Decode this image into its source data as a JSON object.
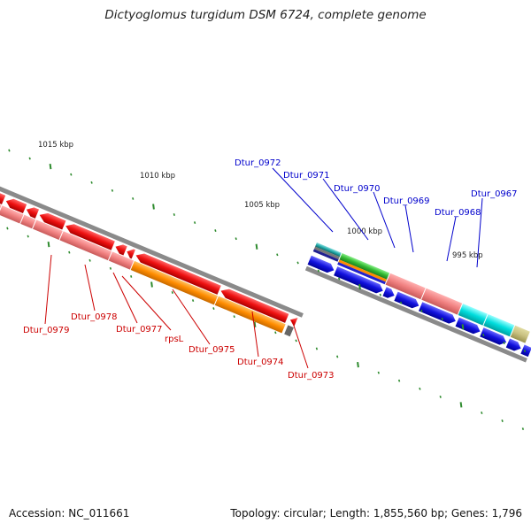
{
  "title": "Dictyoglomus turgidum DSM 6724, complete genome",
  "footer": {
    "accession": "Accession: NC_011661",
    "summary": "Topology: circular; Length: 1,855,560 bp; Genes: 1,796"
  },
  "scale": {
    "labels": [
      "1015 kbp",
      "1010 kbp",
      "1005 kbp",
      "1000 kbp",
      "995 kbp"
    ],
    "tick_color": "#2e8b2e"
  },
  "colors": {
    "backbone": "#8a8a8a",
    "red": "#ee1111",
    "salmon": "#f08080",
    "orange": "#ff8c00",
    "blue": "#1111dd",
    "green": "#33bb33",
    "cyan": "#00dddd",
    "label_red": "#cc0000",
    "label_blue": "#0000cc"
  },
  "genes_left": [
    "Dtur_0979",
    "Dtur_0978",
    "Dtur_0977",
    "rpsL",
    "Dtur_0975",
    "Dtur_0974",
    "Dtur_0973"
  ],
  "genes_right": [
    "Dtur_0972",
    "Dtur_0971",
    "Dtur_0970",
    "Dtur_0969",
    "Dtur_0968",
    "Dtur_0967"
  ]
}
